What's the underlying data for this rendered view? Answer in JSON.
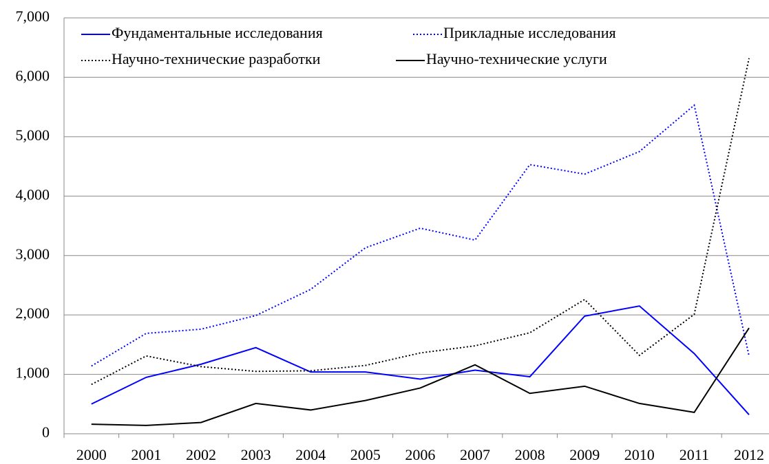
{
  "chart_data": {
    "type": "line",
    "categories": [
      "2000",
      "2001",
      "2002",
      "2003",
      "2004",
      "2005",
      "2006",
      "2007",
      "2008",
      "2009",
      "2010",
      "2011",
      "2012"
    ],
    "series": [
      {
        "name": "Фундаментальные исследования",
        "color": "#0000ff",
        "style": "solid",
        "values": [
          500,
          950,
          1170,
          1450,
          1040,
          1040,
          920,
          1070,
          960,
          1980,
          2150,
          1350,
          320
        ]
      },
      {
        "name": "Прикладные исследования",
        "color": "#0000ff",
        "style": "dotted",
        "values": [
          1140,
          1690,
          1760,
          1990,
          2430,
          3130,
          3460,
          3260,
          4530,
          4370,
          4750,
          5530,
          1310
        ]
      },
      {
        "name": "Научно-технические разработки",
        "color": "#000000",
        "style": "dotted",
        "values": [
          830,
          1310,
          1130,
          1050,
          1060,
          1150,
          1360,
          1480,
          1700,
          2260,
          1320,
          2010,
          6320
        ]
      },
      {
        "name": "Научно-технические услуги",
        "color": "#000000",
        "style": "solid",
        "values": [
          160,
          140,
          190,
          510,
          400,
          560,
          770,
          1160,
          680,
          800,
          510,
          360,
          1780
        ]
      }
    ],
    "ylim": [
      0,
      7000
    ],
    "yticks": [
      0,
      {
        "value": 1000,
        "label": "1,000"
      },
      {
        "value": 2000,
        "label": "2,000"
      },
      {
        "value": 3000,
        "label": "3,000"
      },
      {
        "value": 4000,
        "label": "4,000"
      },
      {
        "value": 5000,
        "label": "5,000"
      },
      {
        "value": 6000,
        "label": "6,000"
      },
      {
        "value": 7000,
        "label": "7,000"
      }
    ],
    "grid": true
  }
}
